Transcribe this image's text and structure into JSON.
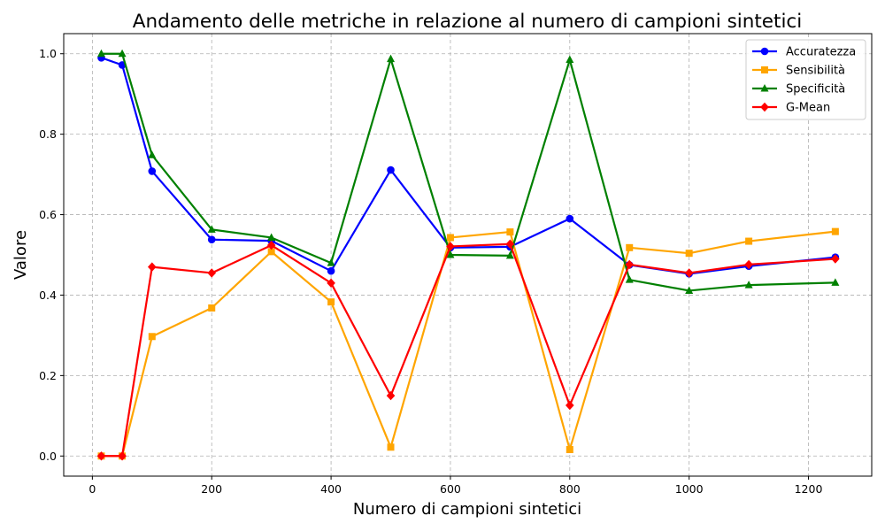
{
  "chart_data": {
    "type": "line",
    "title": "Andamento delle metriche in relazione al numero di campioni sintetici",
    "xlabel": "Numero di campioni sintetici",
    "ylabel": "Valore",
    "xlim": [
      -48,
      1306
    ],
    "ylim": [
      -0.05,
      1.05
    ],
    "xticks": [
      0,
      200,
      400,
      600,
      800,
      1000,
      1200
    ],
    "yticks": [
      0.0,
      0.2,
      0.4,
      0.6,
      0.8,
      1.0
    ],
    "xtick_labels": [
      "0",
      "200",
      "400",
      "600",
      "800",
      "1000",
      "1200"
    ],
    "ytick_labels": [
      "0.0",
      "0.2",
      "0.4",
      "0.6",
      "0.8",
      "1.0"
    ],
    "grid": true,
    "grid_style": "dashed",
    "legend_position": "top-right",
    "x": [
      15,
      50,
      100,
      200,
      300,
      400,
      500,
      600,
      700,
      800,
      900,
      1000,
      1100,
      1245
    ],
    "series": [
      {
        "name": "Accuratezza",
        "color": "#0000ff",
        "marker": "circle",
        "values": [
          0.99,
          0.972,
          0.708,
          0.538,
          0.535,
          0.46,
          0.711,
          0.518,
          0.52,
          0.59,
          0.475,
          0.453,
          0.472,
          0.494
        ]
      },
      {
        "name": "Sensibilità",
        "color": "#ffa500",
        "marker": "square",
        "values": [
          0.0,
          0.0,
          0.297,
          0.368,
          0.508,
          0.383,
          0.022,
          0.543,
          0.557,
          0.016,
          0.518,
          0.504,
          0.534,
          0.558
        ]
      },
      {
        "name": "Specificità",
        "color": "#008000",
        "marker": "triangle",
        "values": [
          1.0,
          1.0,
          0.748,
          0.563,
          0.543,
          0.48,
          0.987,
          0.5,
          0.498,
          0.985,
          0.438,
          0.411,
          0.425,
          0.431
        ]
      },
      {
        "name": "G-Mean",
        "color": "#ff0000",
        "marker": "diamond",
        "values": [
          0.0,
          0.0,
          0.47,
          0.455,
          0.524,
          0.43,
          0.15,
          0.521,
          0.527,
          0.126,
          0.476,
          0.455,
          0.476,
          0.49
        ]
      }
    ]
  }
}
